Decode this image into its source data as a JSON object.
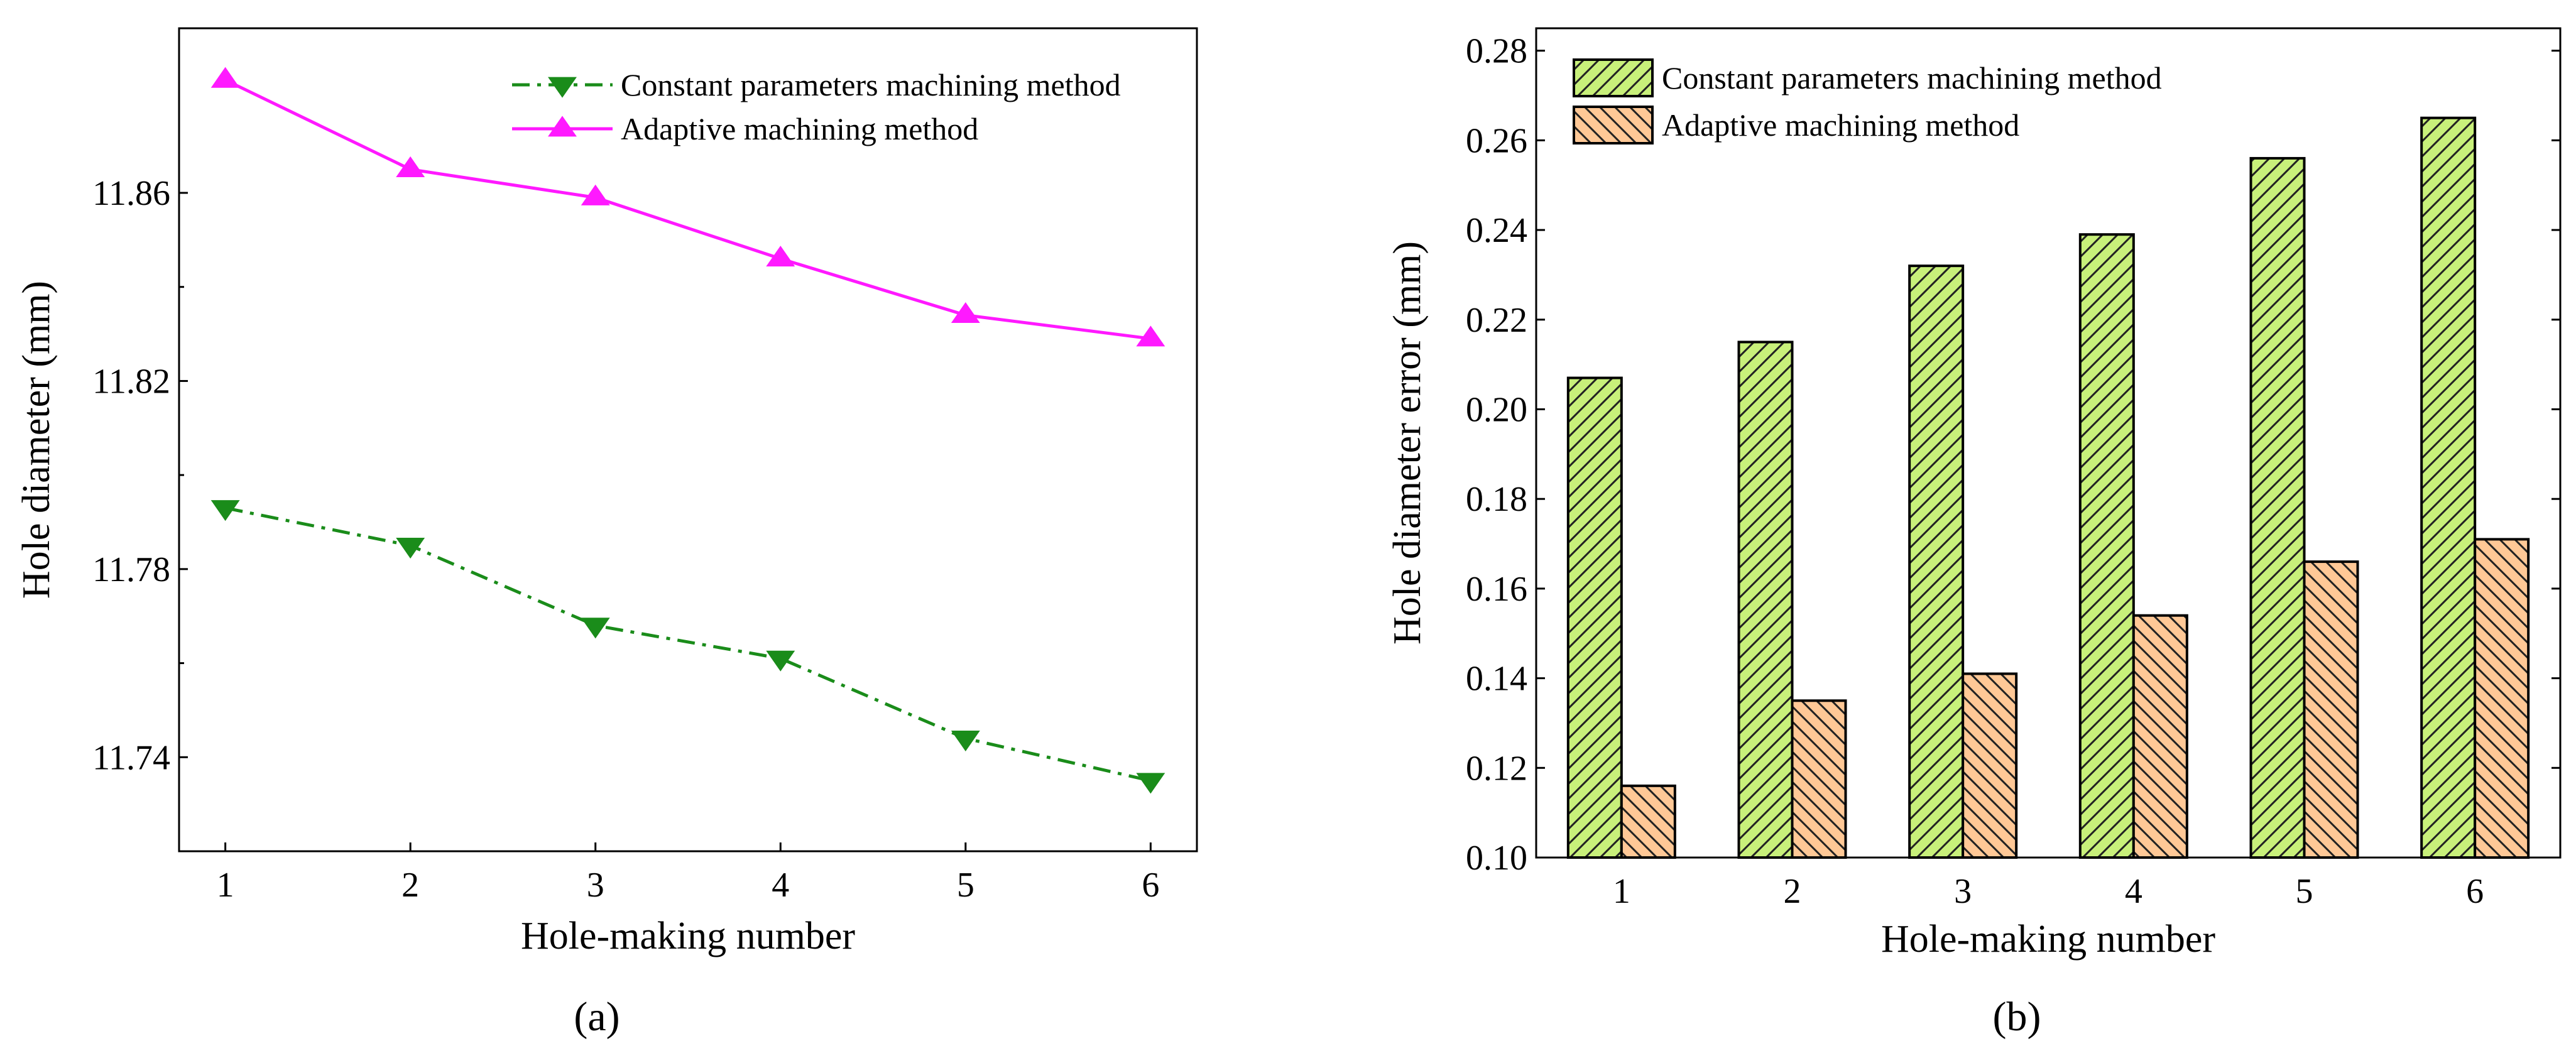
{
  "figure": {
    "panel_a_label": "(a)",
    "panel_b_label": "(b)"
  },
  "chart_data": [
    {
      "type": "line",
      "panel": "(a)",
      "title": "",
      "xlabel": "Hole-making number",
      "ylabel": "Hole diameter (mm)",
      "x": [
        1,
        2,
        3,
        4,
        5,
        6
      ],
      "xticks": [
        "1",
        "2",
        "3",
        "4",
        "5",
        "6"
      ],
      "xlim": [
        0.75,
        6.25
      ],
      "ylim": [
        11.72,
        11.895
      ],
      "yticks": [
        11.74,
        11.78,
        11.82,
        11.86
      ],
      "ytick_labels": [
        "11.74",
        "11.78",
        "11.82",
        "11.86"
      ],
      "legend_position": "top-right",
      "grid": false,
      "series": [
        {
          "name": "Constant parameters machining method",
          "values": [
            11.793,
            11.785,
            11.768,
            11.761,
            11.744,
            11.735
          ],
          "color": "#1a8c1a",
          "line_style": "dash-dot",
          "marker": "triangle-down"
        },
        {
          "name": "Adaptive machining method",
          "values": [
            11.884,
            11.865,
            11.859,
            11.846,
            11.834,
            11.829
          ],
          "color": "#ff19ff",
          "line_style": "solid",
          "marker": "triangle-up"
        }
      ]
    },
    {
      "type": "bar",
      "panel": "(b)",
      "title": "",
      "xlabel": "Hole-making number",
      "ylabel": "Hole diameter error (mm)",
      "categories": [
        "1",
        "2",
        "3",
        "4",
        "5",
        "6"
      ],
      "ylim": [
        0.1,
        0.285
      ],
      "yticks": [
        0.1,
        0.12,
        0.14,
        0.16,
        0.18,
        0.2,
        0.22,
        0.24,
        0.26,
        0.28
      ],
      "ytick_labels": [
        "0.10",
        "0.12",
        "0.14",
        "0.16",
        "0.18",
        "0.20",
        "0.22",
        "0.24",
        "0.26",
        "0.28"
      ],
      "legend_position": "top-left",
      "grid": false,
      "series": [
        {
          "name": "Constant parameters machining method",
          "values": [
            0.207,
            0.215,
            0.232,
            0.239,
            0.256,
            0.265
          ],
          "color": "#c8f07a",
          "hatch": "forward-diagonal"
        },
        {
          "name": "Adaptive machining method",
          "values": [
            0.116,
            0.135,
            0.141,
            0.154,
            0.166,
            0.171
          ],
          "color": "#ffc896",
          "hatch": "backward-diagonal"
        }
      ]
    }
  ]
}
